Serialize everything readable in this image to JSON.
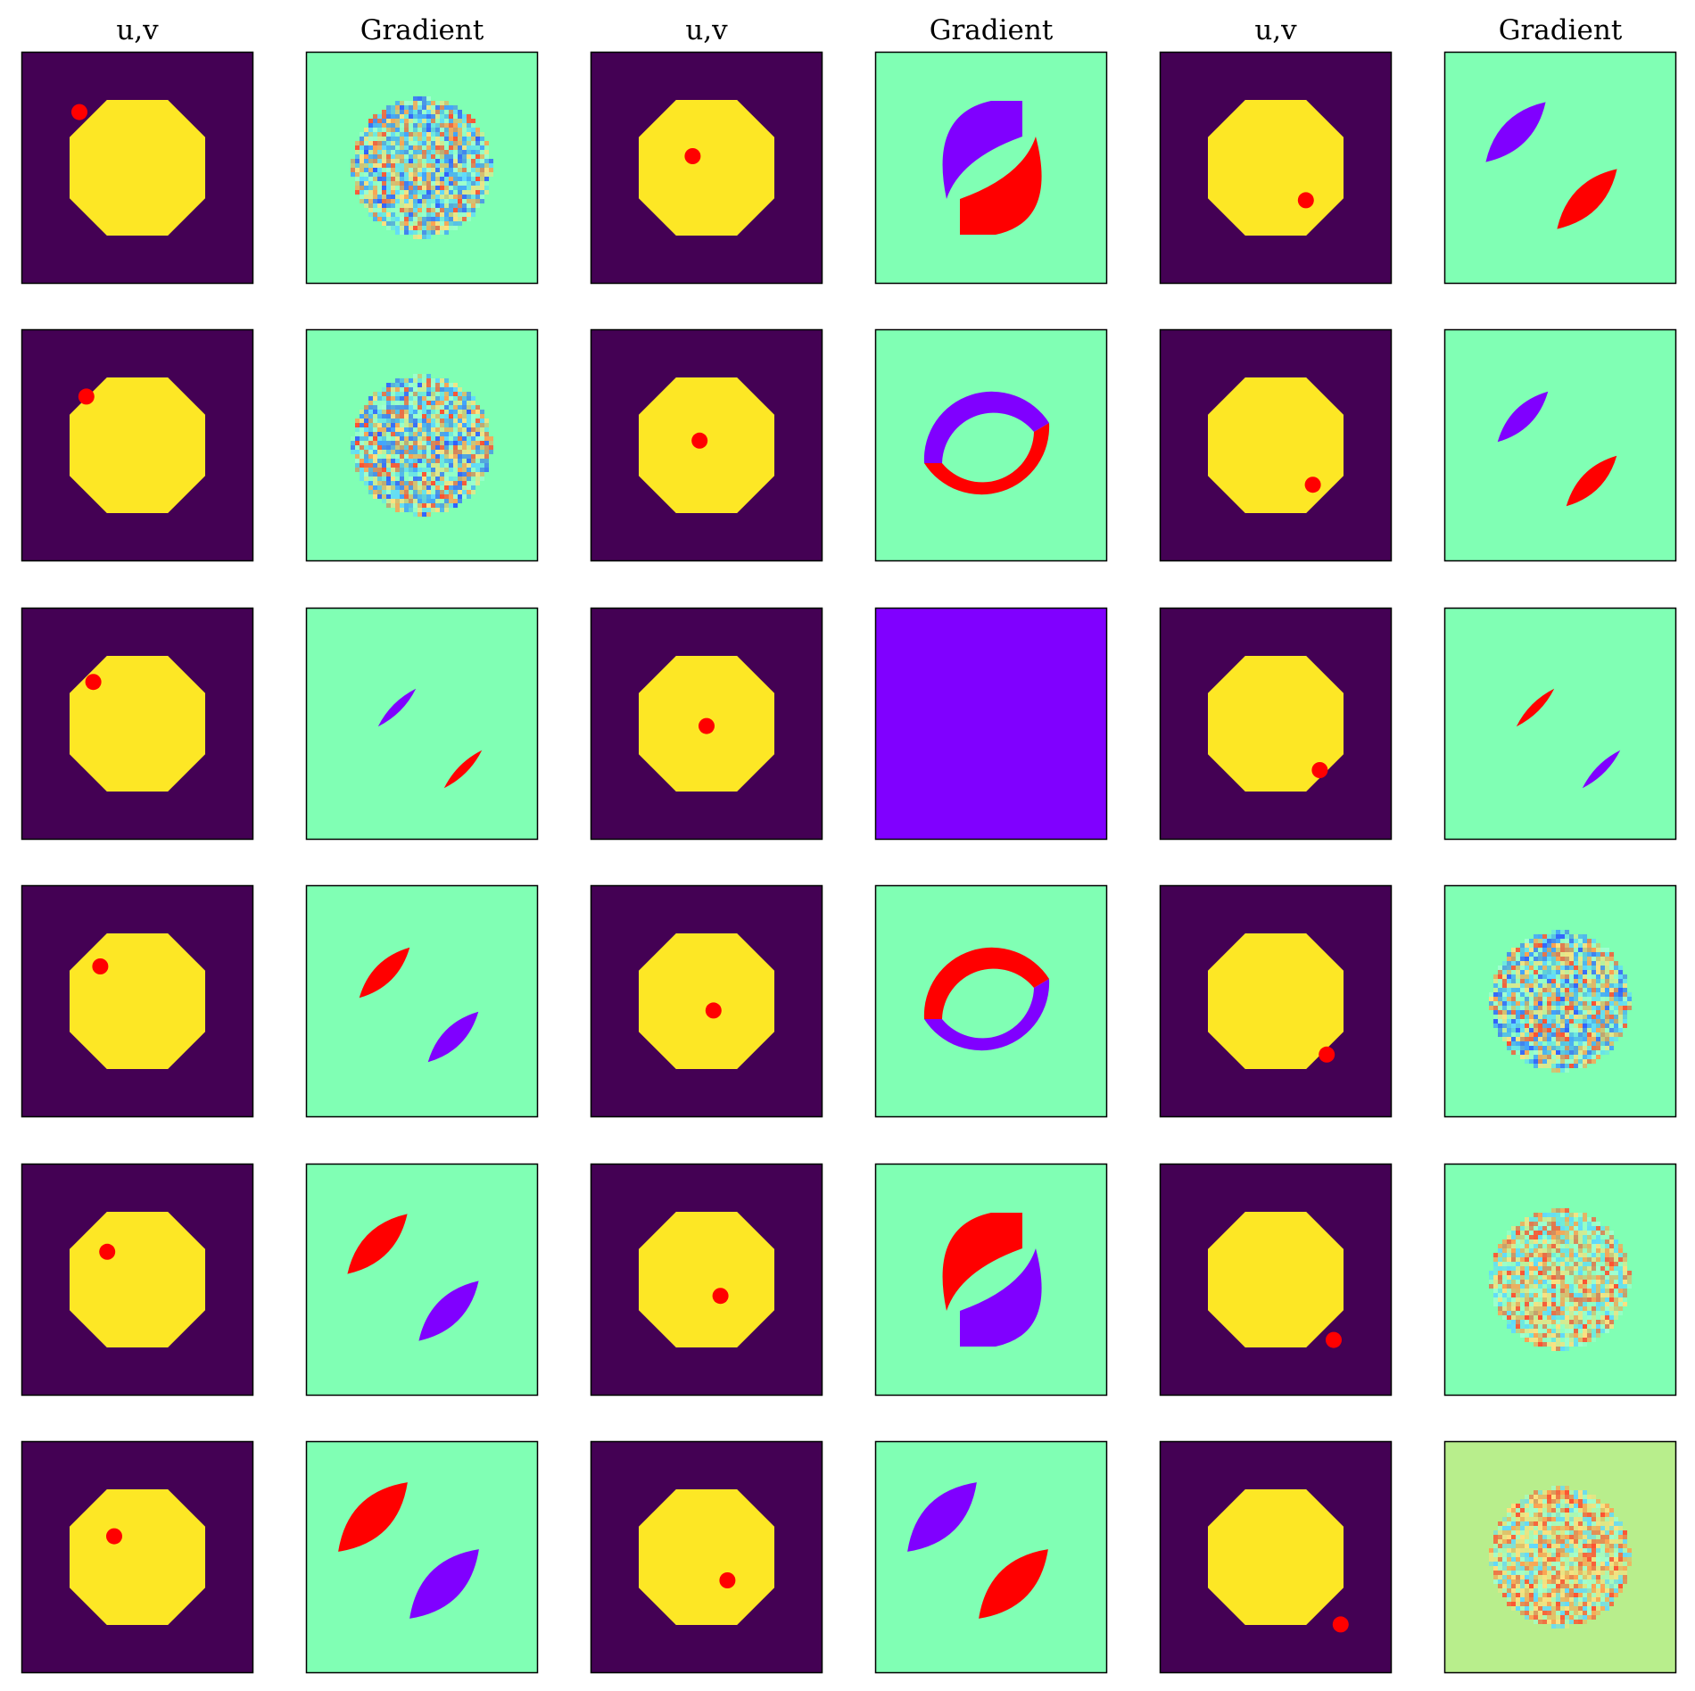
{
  "column_titles": [
    "u,v",
    "Gradient",
    "u,v",
    "Gradient",
    "u,v",
    "Gradient"
  ],
  "colors": {
    "uv_background": "#440154",
    "uv_disk": "#fde725",
    "marker": "#ff0000",
    "gradient_background": "#80ffb4",
    "gradient_background_tinted": "#b8ee8c",
    "gradient_full_negative": "#8000ff",
    "gradient_positive": "#ff0000",
    "gradient_negative": "#8000ff",
    "noise_palette": [
      "#3060ff",
      "#40a0ff",
      "#60d8ff",
      "#a0ffd0",
      "#ffe080",
      "#ffa050",
      "#ff5030"
    ]
  },
  "grid": {
    "rows": 6,
    "groups": 3,
    "marker_positions_by_group": [
      [
        [
          0.25,
          0.26
        ],
        [
          0.28,
          0.29
        ],
        [
          0.31,
          0.32
        ],
        [
          0.34,
          0.35
        ],
        [
          0.37,
          0.38
        ],
        [
          0.4,
          0.41
        ]
      ],
      [
        [
          0.44,
          0.45
        ],
        [
          0.47,
          0.48
        ],
        [
          0.5,
          0.51
        ],
        [
          0.53,
          0.54
        ],
        [
          0.56,
          0.57
        ],
        [
          0.59,
          0.6
        ]
      ],
      [
        [
          0.63,
          0.64
        ],
        [
          0.66,
          0.67
        ],
        [
          0.69,
          0.7
        ],
        [
          0.72,
          0.73
        ],
        [
          0.75,
          0.76
        ],
        [
          0.78,
          0.79
        ]
      ]
    ],
    "gradient_patterns_by_group": [
      [
        "noise",
        "noise",
        "lens-small-reversed",
        "lens-medium",
        "lens-large",
        "lens-xlarge"
      ],
      [
        "crescent-pair",
        "ring",
        "full",
        "ring-reversed",
        "crescent-pair-reversed",
        "lens-xlarge-reversed"
      ],
      [
        "lens-large-reversed",
        "lens-medium-reversed",
        "lens-small",
        "noise",
        "noise-warm",
        "noise-warm-tinted"
      ]
    ]
  }
}
